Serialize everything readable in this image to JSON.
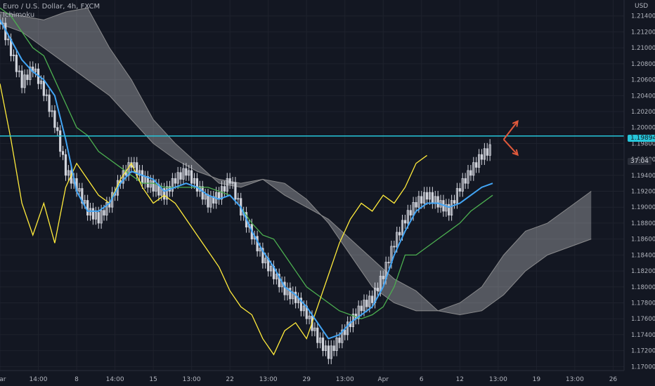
{
  "legend": {
    "symbol": "Euro / U.S. Dollar, 4h, FXCM",
    "indicator": "Ichimoku"
  },
  "price_axis": {
    "currency": "USD",
    "current_price": "1.19894",
    "countdown": "37:04"
  },
  "colors": {
    "background": "#131722",
    "grid": "#1e222d",
    "axis_text": "#b2b5be",
    "candle": "#d1d4dc",
    "tenkan": "#42a5f5",
    "kijun": "#4caf50",
    "chikou": "#ffeb3b",
    "cloud_fill": "#ffffff",
    "cloud_edge": "#9e9e9e",
    "hline": "#26c6da",
    "arrows": "#e0593b"
  },
  "chart_data": {
    "type": "line",
    "symbol": "EURUSD",
    "interval": "4h",
    "ylim": [
      1.1695,
      1.216
    ],
    "y_ticks": [
      1.214,
      1.212,
      1.21,
      1.208,
      1.206,
      1.204,
      1.202,
      1.2,
      1.198,
      1.196,
      1.194,
      1.192,
      1.19,
      1.188,
      1.186,
      1.184,
      1.182,
      1.18,
      1.178,
      1.176,
      1.174,
      1.172,
      1.17
    ],
    "x_ticks": [
      {
        "label": "Mar",
        "pos": 0
      },
      {
        "label": "14:00",
        "pos": 7
      },
      {
        "label": "8",
        "pos": 14
      },
      {
        "label": "14:00",
        "pos": 21
      },
      {
        "label": "15",
        "pos": 28
      },
      {
        "label": "13:00",
        "pos": 35
      },
      {
        "label": "22",
        "pos": 42
      },
      {
        "label": "13:00",
        "pos": 49
      },
      {
        "label": "29",
        "pos": 56
      },
      {
        "label": "13:00",
        "pos": 63
      },
      {
        "label": "Apr",
        "pos": 70
      },
      {
        "label": "6",
        "pos": 77
      },
      {
        "label": "12",
        "pos": 84
      },
      {
        "label": "13:00",
        "pos": 91
      },
      {
        "label": "19",
        "pos": 98
      },
      {
        "label": "13:00",
        "pos": 105
      },
      {
        "label": "26",
        "pos": 112
      }
    ],
    "horizontal_line": 1.19894,
    "series": [
      {
        "kind": "close",
        "x": [
          0,
          2,
          4,
          6,
          8,
          10,
          12,
          14,
          16,
          18,
          20,
          22,
          24,
          26,
          28,
          30,
          32,
          34,
          36,
          38,
          40,
          42,
          44,
          46,
          48,
          50,
          52,
          54,
          56,
          58,
          60,
          62,
          64,
          66,
          68,
          70,
          72,
          74,
          76,
          78,
          80,
          82,
          84,
          86,
          88,
          90
        ],
        "values": [
          1.2135,
          1.2095,
          1.2055,
          1.2075,
          1.2045,
          1.2005,
          1.1945,
          1.1925,
          1.1895,
          1.1885,
          1.1905,
          1.1935,
          1.1955,
          1.1935,
          1.1925,
          1.1915,
          1.1935,
          1.1945,
          1.1925,
          1.1905,
          1.1915,
          1.1935,
          1.1895,
          1.1865,
          1.1835,
          1.1815,
          1.1795,
          1.1785,
          1.1765,
          1.1735,
          1.1715,
          1.1735,
          1.1755,
          1.1775,
          1.1785,
          1.1815,
          1.1855,
          1.1885,
          1.1905,
          1.1915,
          1.1905,
          1.1895,
          1.1925,
          1.1945,
          1.1965,
          1.1975
        ]
      },
      {
        "kind": "tenkan",
        "x": [
          0,
          2,
          4,
          6,
          8,
          10,
          12,
          14,
          16,
          18,
          20,
          22,
          24,
          26,
          28,
          30,
          32,
          34,
          36,
          38,
          40,
          42,
          44,
          46,
          48,
          50,
          52,
          54,
          56,
          58,
          60,
          62,
          64,
          66,
          68,
          70,
          72,
          74,
          76,
          78,
          80,
          82,
          84,
          86,
          88,
          90
        ],
        "values": [
          1.2135,
          1.211,
          1.2085,
          1.207,
          1.206,
          1.204,
          1.1985,
          1.192,
          1.1895,
          1.1895,
          1.1905,
          1.193,
          1.1945,
          1.194,
          1.1935,
          1.192,
          1.1925,
          1.193,
          1.1925,
          1.1915,
          1.191,
          1.1915,
          1.19,
          1.187,
          1.1845,
          1.1825,
          1.18,
          1.179,
          1.1775,
          1.1755,
          1.1735,
          1.174,
          1.1755,
          1.1765,
          1.1775,
          1.18,
          1.184,
          1.187,
          1.1895,
          1.1905,
          1.1905,
          1.19,
          1.1905,
          1.1915,
          1.1925,
          1.193
        ]
      },
      {
        "kind": "kijun",
        "x": [
          0,
          2,
          4,
          6,
          8,
          10,
          12,
          14,
          16,
          18,
          20,
          22,
          24,
          26,
          28,
          30,
          32,
          34,
          36,
          38,
          40,
          42,
          44,
          46,
          48,
          50,
          52,
          54,
          56,
          58,
          60,
          62,
          64,
          66,
          68,
          70,
          72,
          74,
          76,
          78,
          80,
          82,
          84,
          86,
          88,
          90
        ],
        "values": [
          1.215,
          1.214,
          1.212,
          1.21,
          1.209,
          1.206,
          1.203,
          1.2,
          1.199,
          1.197,
          1.196,
          1.195,
          1.194,
          1.193,
          1.193,
          1.1925,
          1.1925,
          1.1925,
          1.1925,
          1.1925,
          1.192,
          1.1915,
          1.19,
          1.188,
          1.1865,
          1.186,
          1.184,
          1.182,
          1.18,
          1.179,
          1.178,
          1.177,
          1.1765,
          1.176,
          1.1765,
          1.1775,
          1.18,
          1.184,
          1.184,
          1.185,
          1.186,
          1.187,
          1.188,
          1.1895,
          1.1905,
          1.1915
        ]
      },
      {
        "kind": "chikou",
        "x": [
          0,
          2,
          4,
          6,
          8,
          10,
          12,
          14,
          16,
          18,
          20,
          22,
          24,
          26,
          28,
          30,
          32,
          34,
          36,
          38,
          40,
          42,
          44,
          46,
          48,
          50,
          52,
          54,
          56,
          58,
          60,
          62,
          64,
          66,
          68,
          70,
          72,
          74,
          76,
          78
        ],
        "values": [
          1.2055,
          1.1985,
          1.1905,
          1.1865,
          1.1905,
          1.1855,
          1.1925,
          1.1955,
          1.1935,
          1.1915,
          1.1905,
          1.1935,
          1.1955,
          1.1925,
          1.1905,
          1.1915,
          1.1905,
          1.1885,
          1.1865,
          1.1845,
          1.1825,
          1.1795,
          1.1775,
          1.1765,
          1.1735,
          1.1715,
          1.1745,
          1.1755,
          1.1735,
          1.1775,
          1.1815,
          1.1855,
          1.1885,
          1.1905,
          1.1895,
          1.1915,
          1.1905,
          1.1925,
          1.1955,
          1.1965
        ]
      },
      {
        "kind": "senkou_a",
        "x": [
          0,
          4,
          8,
          12,
          16,
          20,
          24,
          28,
          32,
          36,
          40,
          44,
          48,
          52,
          56,
          60,
          64,
          68,
          72,
          76,
          80,
          84,
          88,
          92,
          96,
          100,
          104,
          108
        ],
        "values": [
          1.2145,
          1.214,
          1.2135,
          1.2145,
          1.215,
          1.21,
          1.206,
          1.201,
          1.198,
          1.1955,
          1.193,
          1.1925,
          1.1935,
          1.193,
          1.191,
          1.188,
          1.184,
          1.18,
          1.178,
          1.177,
          1.177,
          1.178,
          1.18,
          1.184,
          1.187,
          1.188,
          1.19,
          1.192
        ]
      },
      {
        "kind": "senkou_b",
        "x": [
          0,
          4,
          8,
          12,
          16,
          20,
          24,
          28,
          32,
          36,
          40,
          44,
          48,
          52,
          56,
          60,
          64,
          68,
          72,
          76,
          80,
          84,
          88,
          92,
          96,
          100,
          104,
          108
        ],
        "values": [
          1.213,
          1.212,
          1.21,
          1.208,
          1.206,
          1.204,
          1.201,
          1.198,
          1.196,
          1.1945,
          1.1935,
          1.193,
          1.1935,
          1.1915,
          1.19,
          1.1885,
          1.186,
          1.1835,
          1.181,
          1.1795,
          1.177,
          1.1765,
          1.177,
          1.179,
          1.182,
          1.184,
          1.185,
          1.186
        ]
      }
    ]
  }
}
